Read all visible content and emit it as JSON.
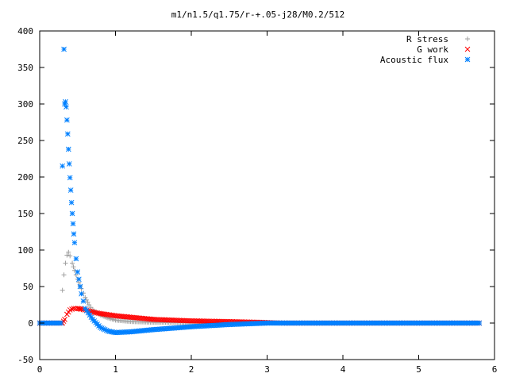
{
  "chart_data": {
    "type": "scatter",
    "title": "m1/n1.5/q1.75/r-+.05-j28/M0.2/512",
    "xlabel": "",
    "ylabel": "",
    "xlim": [
      0,
      6
    ],
    "ylim": [
      -50,
      400
    ],
    "x_ticks": [
      "0",
      "1",
      "2",
      "3",
      "4",
      "5",
      "6"
    ],
    "y_ticks": [
      "-50",
      "0",
      "50",
      "100",
      "150",
      "200",
      "250",
      "300",
      "350",
      "400"
    ],
    "grid": false,
    "legend_position": "top-right",
    "series": [
      {
        "name": "R stress",
        "marker": "plus",
        "color": "#a0a0a0",
        "points": [
          [
            0.0,
            0
          ],
          [
            0.28,
            0
          ],
          [
            0.3,
            45
          ],
          [
            0.32,
            66
          ],
          [
            0.34,
            82
          ],
          [
            0.36,
            93
          ],
          [
            0.38,
            97
          ],
          [
            0.4,
            92
          ],
          [
            0.43,
            82
          ],
          [
            0.46,
            72
          ],
          [
            0.5,
            60
          ],
          [
            0.55,
            47
          ],
          [
            0.6,
            35
          ],
          [
            0.65,
            25
          ],
          [
            0.7,
            18
          ],
          [
            0.8,
            11
          ],
          [
            0.9,
            7
          ],
          [
            1.0,
            4
          ],
          [
            1.2,
            2
          ],
          [
            1.5,
            1
          ],
          [
            2.0,
            0.5
          ],
          [
            2.5,
            0.2
          ],
          [
            3.0,
            0
          ],
          [
            5.8,
            0
          ]
        ]
      },
      {
        "name": "G work",
        "marker": "x",
        "color": "#ff0000",
        "points": [
          [
            0.0,
            0
          ],
          [
            0.3,
            0
          ],
          [
            0.33,
            5
          ],
          [
            0.36,
            12
          ],
          [
            0.4,
            18
          ],
          [
            0.45,
            20
          ],
          [
            0.5,
            20
          ],
          [
            0.55,
            19
          ],
          [
            0.6,
            18
          ],
          [
            0.7,
            15
          ],
          [
            0.8,
            13
          ],
          [
            1.0,
            10
          ],
          [
            1.2,
            8
          ],
          [
            1.5,
            5
          ],
          [
            2.0,
            3
          ],
          [
            2.5,
            2
          ],
          [
            2.9,
            1
          ],
          [
            3.2,
            0
          ],
          [
            5.8,
            0
          ]
        ]
      },
      {
        "name": "Acoustic flux",
        "marker": "star",
        "color": "#0080ff",
        "points": [
          [
            0.0,
            0
          ],
          [
            0.28,
            0
          ],
          [
            0.3,
            215
          ],
          [
            0.32,
            375
          ],
          [
            0.33,
            300
          ],
          [
            0.34,
            303
          ],
          [
            0.35,
            296
          ],
          [
            0.36,
            278
          ],
          [
            0.37,
            259
          ],
          [
            0.38,
            238
          ],
          [
            0.39,
            218
          ],
          [
            0.4,
            199
          ],
          [
            0.41,
            182
          ],
          [
            0.42,
            165
          ],
          [
            0.43,
            150
          ],
          [
            0.44,
            136
          ],
          [
            0.45,
            122
          ],
          [
            0.46,
            110
          ],
          [
            0.48,
            88
          ],
          [
            0.5,
            70
          ],
          [
            0.55,
            40
          ],
          [
            0.6,
            20
          ],
          [
            0.7,
            5
          ],
          [
            0.8,
            -6
          ],
          [
            0.9,
            -11
          ],
          [
            1.0,
            -13
          ],
          [
            1.2,
            -12
          ],
          [
            1.5,
            -9
          ],
          [
            2.0,
            -5
          ],
          [
            2.5,
            -2
          ],
          [
            3.0,
            0
          ],
          [
            5.8,
            0
          ]
        ]
      }
    ]
  }
}
